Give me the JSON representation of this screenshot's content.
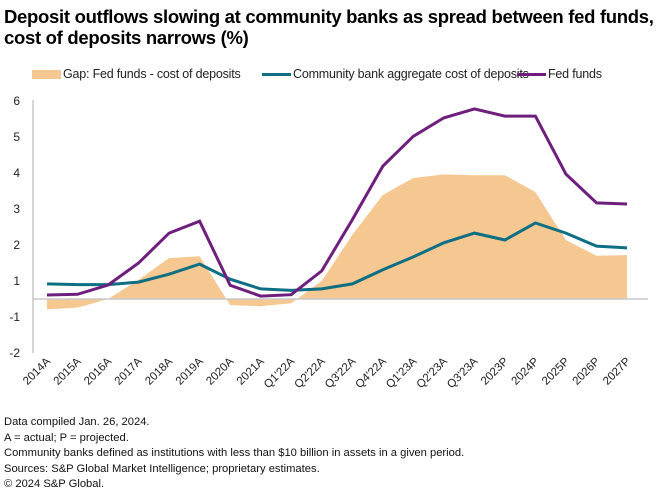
{
  "title_line1": "Deposit outflows slowing at community banks as spread between fed funds,",
  "title_line2": "cost of deposits narrows (%)",
  "legend": [
    {
      "label": "Gap: Fed funds - cost of deposits",
      "kind": "area",
      "color": "#F5C892"
    },
    {
      "label": "Community bank aggregate cost of deposits",
      "kind": "line",
      "color": "#0E6E83"
    },
    {
      "label": "Fed funds",
      "kind": "line",
      "color": "#6E1F7D"
    }
  ],
  "footnotes": [
    "Data compiled Jan. 26, 2024.",
    "A = actual; P = projected.",
    "Community banks defined as institutions with less than $10 billion in assets in a given period.",
    "Sources: S&P Global Market Intelligence; proprietary estimates.",
    "© 2024 S&P Global."
  ],
  "chart_data": {
    "type": "line",
    "title": "Deposit outflows slowing at community banks as spread between fed funds, cost of deposits narrows (%)",
    "xlabel": "",
    "ylabel": "",
    "ylim": [
      -2,
      6
    ],
    "yticks": [
      6,
      5,
      4,
      3,
      2,
      1,
      -1,
      -2
    ],
    "grid": false,
    "legend_position": "top",
    "categories": [
      "2014A",
      "2015A",
      "2016A",
      "2017A",
      "2018A",
      "2019A",
      "2020A",
      "2021A",
      "Q1'22A",
      "Q2'22A",
      "Q3'22A",
      "Q4'22A",
      "Q1'23A",
      "Q2'23A",
      "Q3'23A",
      "2023P",
      "2024P",
      "2025P",
      "2026P",
      "2027P"
    ],
    "series": [
      {
        "name": "Gap: Fed funds - cost of deposits",
        "type": "area",
        "color": "#F5C892",
        "values": [
          -0.29,
          -0.24,
          0.0,
          0.53,
          1.14,
          1.19,
          -0.17,
          -0.2,
          -0.12,
          0.5,
          1.78,
          2.89,
          3.36,
          3.46,
          3.44,
          3.44,
          2.97,
          1.64,
          1.2,
          1.22
        ]
      },
      {
        "name": "Community bank aggregate cost of deposits",
        "type": "line",
        "color": "#0E6E83",
        "values": [
          0.42,
          0.4,
          0.4,
          0.47,
          0.69,
          0.97,
          0.55,
          0.28,
          0.24,
          0.28,
          0.42,
          0.81,
          1.17,
          1.56,
          1.83,
          1.64,
          2.11,
          1.83,
          1.47,
          1.42
        ]
      },
      {
        "name": "Fed funds",
        "type": "line",
        "color": "#6E1F7D",
        "values": [
          0.11,
          0.13,
          0.39,
          1.0,
          1.83,
          2.16,
          0.38,
          0.08,
          0.12,
          0.78,
          2.2,
          3.69,
          4.52,
          5.03,
          5.28,
          5.08,
          5.08,
          3.47,
          2.67,
          2.64
        ]
      }
    ]
  }
}
